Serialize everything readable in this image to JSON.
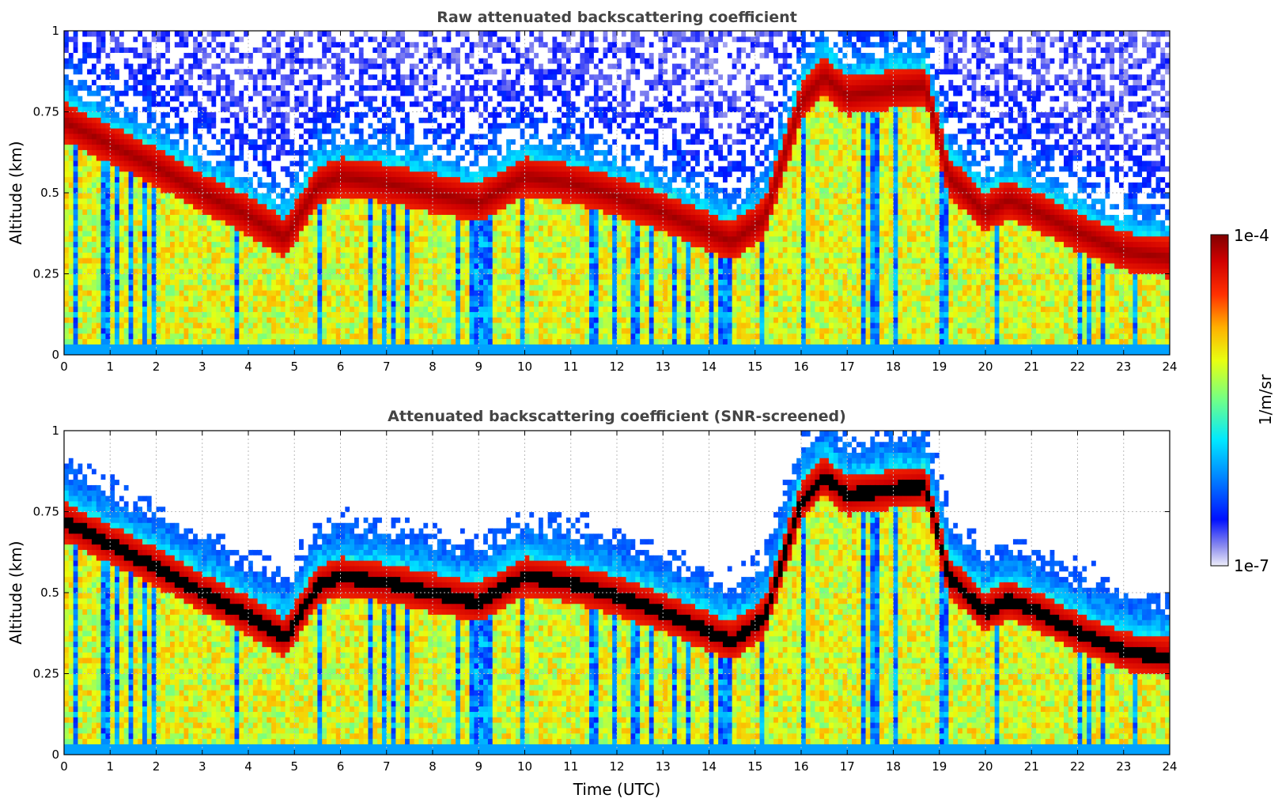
{
  "figure": {
    "colorbar": {
      "max_label": "1e-4",
      "min_label": "1e-7",
      "unit_label": "1/m/sr",
      "vmin": 1e-07,
      "vmax": 0.0001,
      "scale": "log",
      "colormap": "jet"
    }
  },
  "chart_data": [
    {
      "type": "heatmap",
      "title": "Raw attenuated backscattering coefficient",
      "xlabel": "",
      "ylabel": "Altitude (km)",
      "xlim": [
        0,
        24
      ],
      "ylim": [
        0,
        1
      ],
      "x_ticks": [
        "0",
        "1",
        "2",
        "3",
        "4",
        "5",
        "6",
        "7",
        "8",
        "9",
        "10",
        "11",
        "12",
        "13",
        "14",
        "15",
        "16",
        "17",
        "18",
        "19",
        "20",
        "21",
        "22",
        "23",
        "24"
      ],
      "y_ticks": [
        "0",
        "0.25",
        "0.5",
        "0.75",
        "1"
      ],
      "y_tick_values": [
        0,
        0.25,
        0.5,
        0.75,
        1
      ],
      "grid": true,
      "screened": false,
      "layer_altitude_km": {
        "t": [
          0,
          1,
          2,
          3,
          4,
          4.8,
          5.5,
          6,
          7,
          8,
          9,
          10,
          11,
          12,
          13,
          14,
          14.5,
          15.2,
          16,
          16.5,
          17,
          18,
          18.7,
          19.2,
          20,
          20.5,
          21,
          22,
          23,
          24
        ],
        "z": [
          0.72,
          0.65,
          0.58,
          0.5,
          0.43,
          0.36,
          0.52,
          0.55,
          0.53,
          0.5,
          0.47,
          0.55,
          0.53,
          0.49,
          0.44,
          0.38,
          0.35,
          0.42,
          0.78,
          0.86,
          0.8,
          0.82,
          0.83,
          0.55,
          0.44,
          0.48,
          0.45,
          0.38,
          0.32,
          0.3
        ]
      }
    },
    {
      "type": "heatmap",
      "title": "Attenuated backscattering coefficient (SNR-screened)",
      "xlabel": "Time (UTC)",
      "ylabel": "Altitude (km)",
      "xlim": [
        0,
        24
      ],
      "ylim": [
        0,
        1
      ],
      "x_ticks": [
        "0",
        "1",
        "2",
        "3",
        "4",
        "5",
        "6",
        "7",
        "8",
        "9",
        "10",
        "11",
        "12",
        "13",
        "14",
        "15",
        "16",
        "17",
        "18",
        "19",
        "20",
        "21",
        "22",
        "23",
        "24"
      ],
      "y_ticks": [
        "0",
        "0.25",
        "0.5",
        "0.75",
        "1"
      ],
      "y_tick_values": [
        0,
        0.25,
        0.5,
        0.75,
        1
      ],
      "grid": true,
      "screened": true,
      "layer_altitude_km": {
        "t": [
          0,
          1,
          2,
          3,
          4,
          4.8,
          5.5,
          6,
          7,
          8,
          9,
          10,
          11,
          12,
          13,
          14,
          14.5,
          15.2,
          16,
          16.5,
          17,
          18,
          18.7,
          19.2,
          20,
          20.5,
          21,
          22,
          23,
          24
        ],
        "z": [
          0.72,
          0.65,
          0.58,
          0.5,
          0.43,
          0.36,
          0.52,
          0.55,
          0.53,
          0.5,
          0.47,
          0.55,
          0.53,
          0.49,
          0.44,
          0.38,
          0.35,
          0.42,
          0.78,
          0.86,
          0.8,
          0.82,
          0.83,
          0.55,
          0.44,
          0.48,
          0.45,
          0.38,
          0.32,
          0.3
        ]
      }
    }
  ]
}
